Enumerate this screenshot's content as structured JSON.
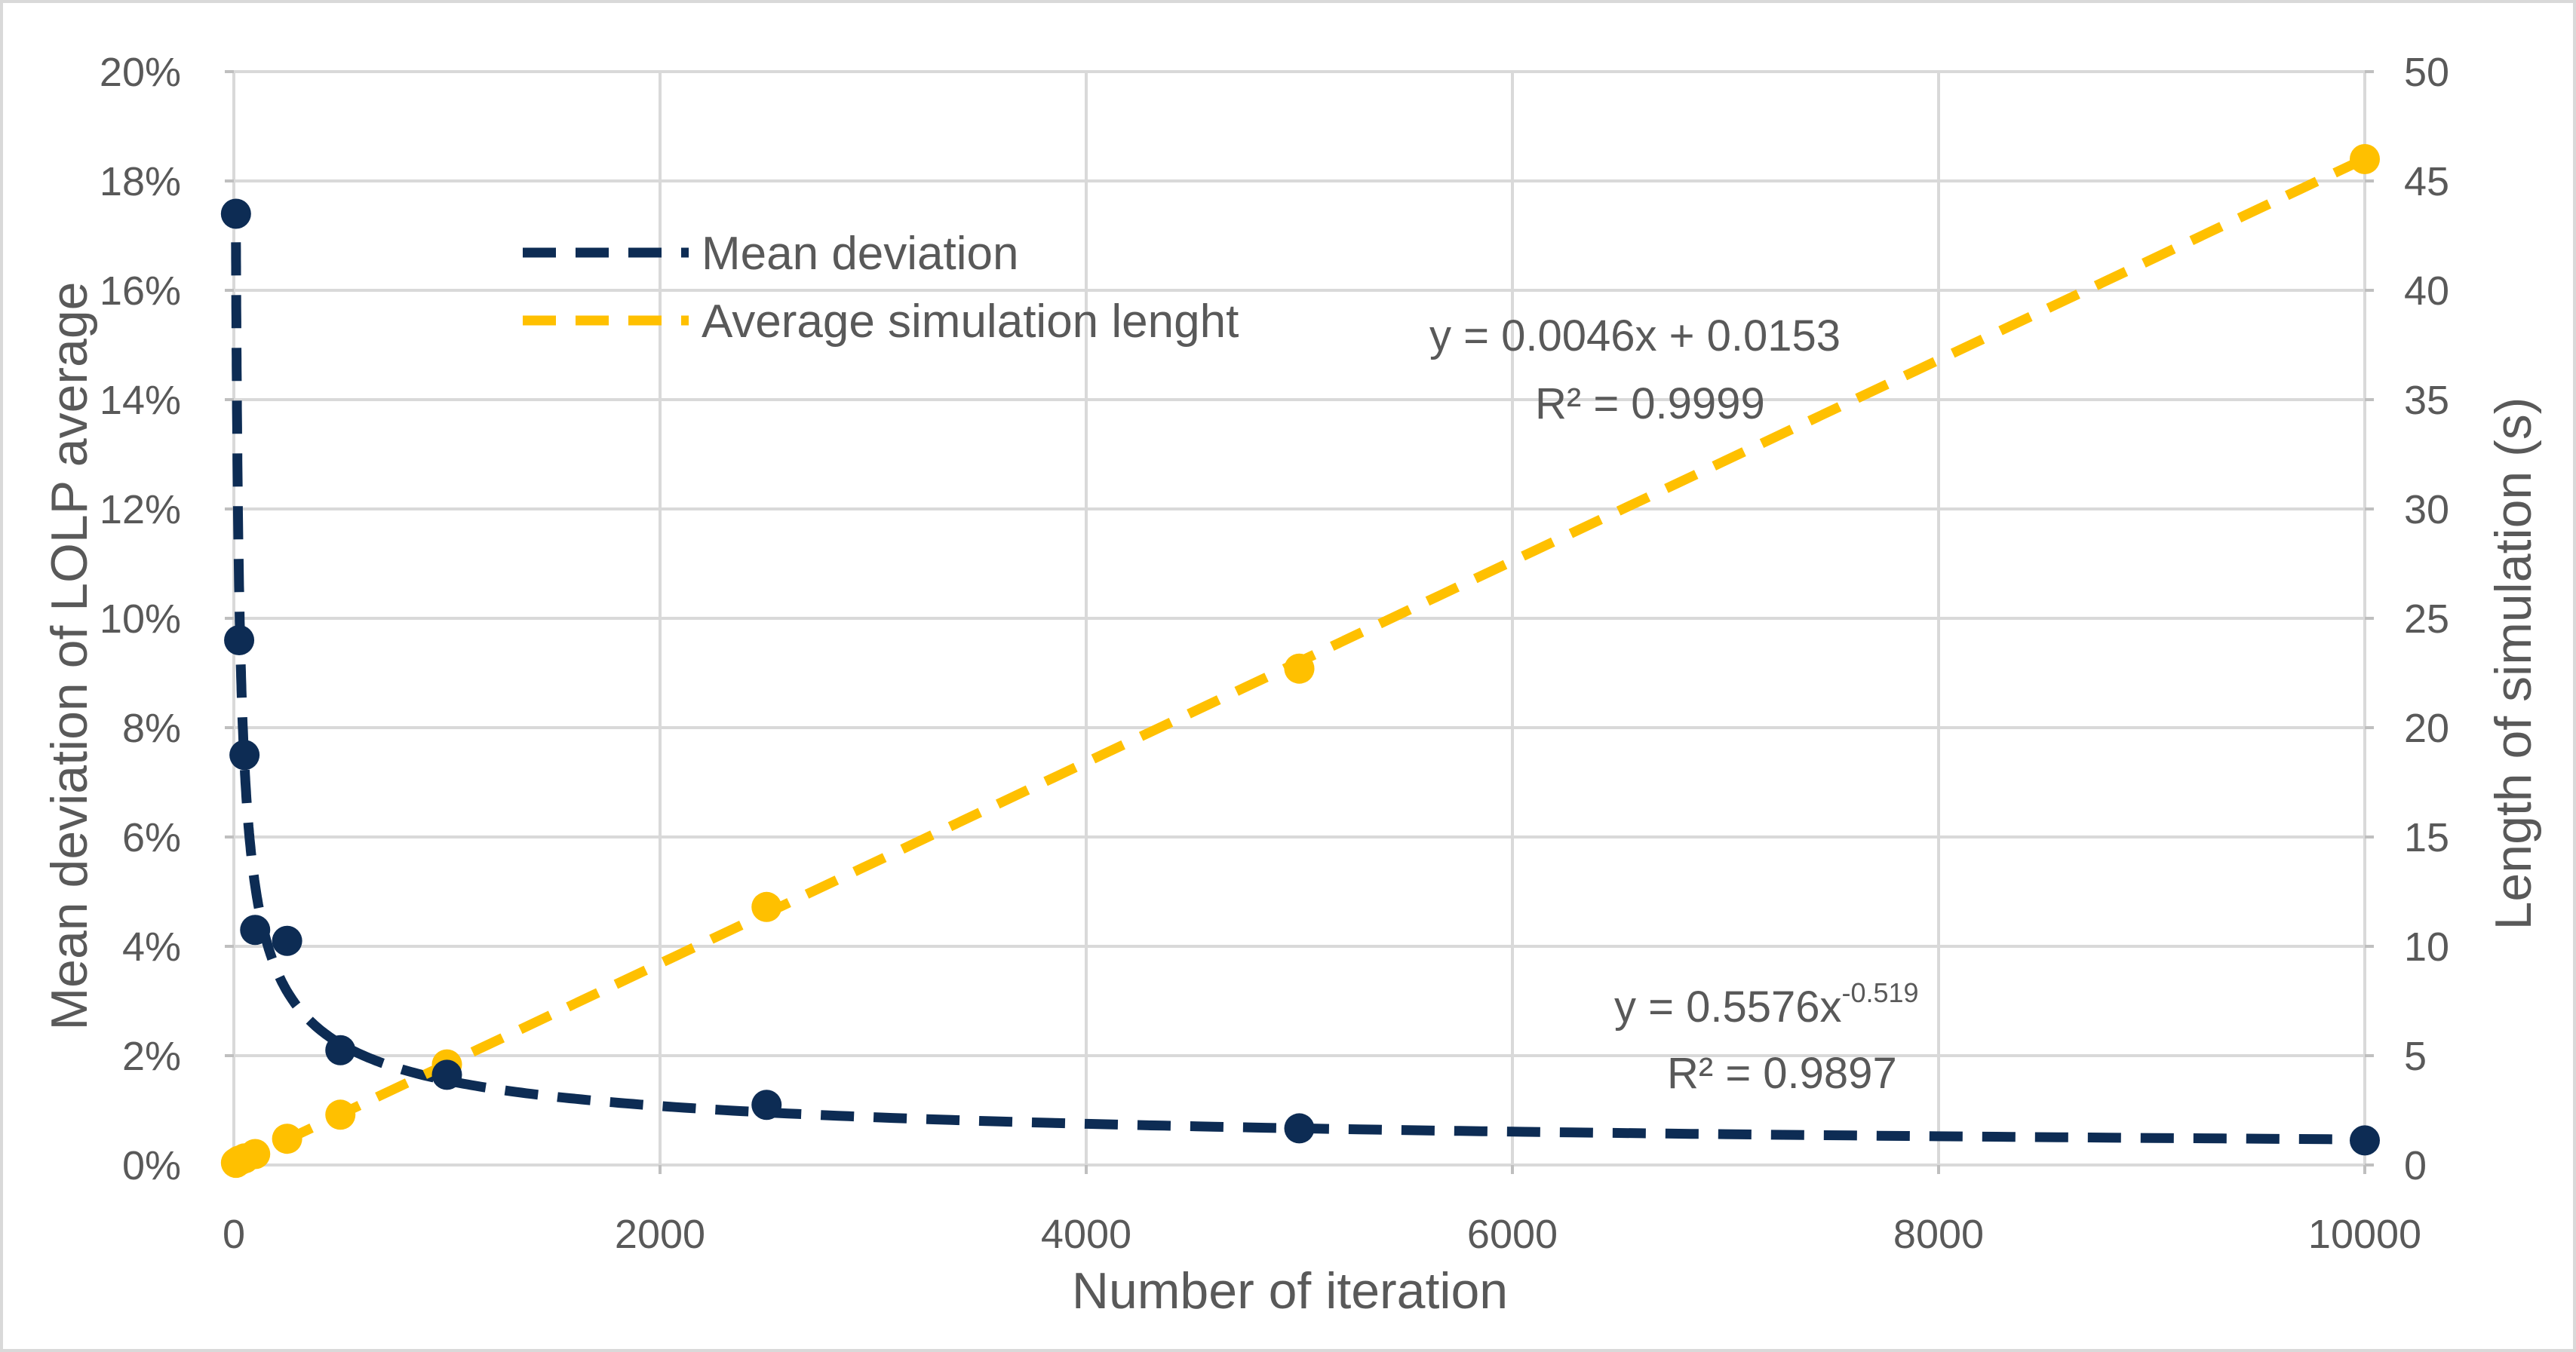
{
  "chart_data": {
    "type": "scatter",
    "title": "",
    "xlabel": "Number of iteration",
    "ylabel": "Mean deviation of LOLP average",
    "y2label": "Length of simulation (s)",
    "xlim": [
      0,
      10000
    ],
    "ylim": [
      0,
      20
    ],
    "y2lim": [
      0,
      50
    ],
    "xticks": [
      "0",
      "2000",
      "4000",
      "6000",
      "8000",
      "10000"
    ],
    "yticks": [
      "0%",
      "2%",
      "4%",
      "6%",
      "8%",
      "10%",
      "12%",
      "14%",
      "16%",
      "18%",
      "20%"
    ],
    "y2ticks": [
      "0",
      "5",
      "10",
      "15",
      "20",
      "25",
      "30",
      "35",
      "40",
      "45",
      "50"
    ],
    "grid": true,
    "legend_position": "top-left",
    "series": [
      {
        "name": "Mean deviation",
        "axis": "left",
        "unit": "percent",
        "color": "#0d2c54",
        "x": [
          10,
          25,
          50,
          100,
          250,
          500,
          1000,
          2500,
          5000,
          10000
        ],
        "values": [
          17.4,
          9.6,
          7.5,
          4.3,
          4.1,
          2.1,
          1.65,
          1.1,
          0.67,
          0.45
        ],
        "trendline": {
          "equation": "y = 0.5576x",
          "exponent": "-0.519",
          "r2": "R² = 0.9897"
        }
      },
      {
        "name": "Average simulation lenght",
        "axis": "right",
        "unit": "seconds",
        "color": "#ffc000",
        "x": [
          10,
          25,
          50,
          100,
          250,
          500,
          1000,
          2500,
          5000,
          10000
        ],
        "values": [
          0.1,
          0.2,
          0.3,
          0.5,
          1.2,
          2.3,
          4.6,
          11.8,
          22.7,
          46.0
        ],
        "trendline": {
          "equation": "y = 0.0046x + 0.0153",
          "r2": "R² = 0.9999"
        }
      }
    ]
  }
}
